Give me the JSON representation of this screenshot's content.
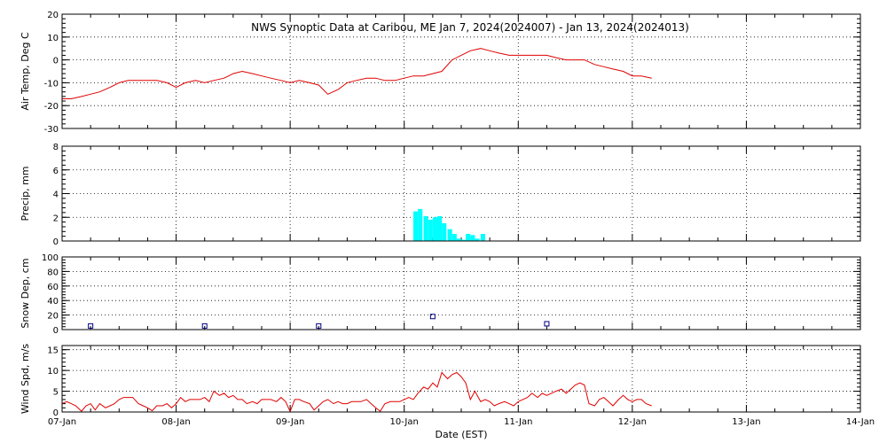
{
  "chart_data": {
    "type": "line",
    "title": "NWS Synoptic Data at Caribou, ME   Jan  7, 2024(2024007) - Jan 13, 2024(2024013)",
    "xlabel": "Date (EST)",
    "x_range": [
      "2024-01-07",
      "2024-01-14"
    ],
    "x_ticks": [
      "07-Jan",
      "08-Jan",
      "09-Jan",
      "10-Jan",
      "11-Jan",
      "12-Jan",
      "13-Jan",
      "14-Jan"
    ],
    "panels": [
      {
        "key": "temp",
        "type": "line",
        "ylabel": "Air Temp, Deg C",
        "ylim": [
          -30,
          20
        ],
        "y_ticks": [
          20,
          10,
          0,
          -10,
          -20,
          -30
        ],
        "color": "#e00000",
        "series": [
          {
            "days": [
              0,
              0.08,
              0.17,
              0.25,
              0.33,
              0.42,
              0.5,
              0.58,
              0.67,
              0.75,
              0.83,
              0.92,
              1.0,
              1.08,
              1.17,
              1.25,
              1.33,
              1.42,
              1.5,
              1.58,
              1.67,
              1.75,
              1.83,
              1.92,
              2.0,
              2.08,
              2.17,
              2.25,
              2.33,
              2.42,
              2.5,
              2.58,
              2.67,
              2.75,
              2.83,
              2.92,
              3.0,
              3.08,
              3.17,
              3.25,
              3.33,
              3.42,
              3.5,
              3.58,
              3.67,
              3.75,
              3.83,
              3.92,
              4.0,
              4.08,
              4.17,
              4.25,
              4.33,
              4.42,
              4.5,
              4.58,
              4.67,
              4.75,
              4.83,
              4.92,
              5.0,
              5.08,
              5.17
            ],
            "values": [
              -17,
              -17,
              -16,
              -15,
              -14,
              -12,
              -10,
              -9,
              -9,
              -9,
              -9,
              -10,
              -12,
              -10,
              -9,
              -10,
              -9,
              -8,
              -6,
              -5,
              -6,
              -7,
              -8,
              -9,
              -10,
              -9,
              -10,
              -11,
              -15,
              -13,
              -10,
              -9,
              -8,
              -8,
              -9,
              -9,
              -8,
              -7,
              -7,
              -6,
              -5,
              0,
              2,
              4,
              5,
              4,
              3,
              2,
              2,
              2,
              2,
              2,
              1,
              0,
              0,
              0,
              -2,
              -3,
              -4,
              -5,
              -7,
              -7,
              -8
            ]
          }
        ]
      },
      {
        "key": "precip",
        "type": "bar",
        "ylabel": "Precip, mm",
        "ylim": [
          0,
          8
        ],
        "y_ticks": [
          8,
          6,
          4,
          2,
          0
        ],
        "color": "#00ffff",
        "series": [
          {
            "days": [
              3.08,
              3.12,
              3.17,
              3.21,
              3.25,
              3.29,
              3.33,
              3.38,
              3.42,
              3.46,
              3.5,
              3.54,
              3.58,
              3.62,
              3.67,
              3.71
            ],
            "values": [
              2.5,
              2.7,
              2.1,
              1.8,
              2.0,
              2.1,
              1.5,
              1.0,
              0.6,
              0.2,
              0.1,
              0.6,
              0.5,
              0.2,
              0.6,
              0.0
            ]
          }
        ]
      },
      {
        "key": "snow",
        "type": "scatter",
        "ylabel": "Snow Dep, cm",
        "ylim": [
          0,
          100
        ],
        "y_ticks": [
          100,
          80,
          60,
          40,
          20,
          0
        ],
        "color": "#000080",
        "series": [
          {
            "days": [
              0.25,
              1.25,
              2.25,
              3.25,
              4.25
            ],
            "values": [
              5,
              5,
              5,
              18,
              8
            ]
          }
        ]
      },
      {
        "key": "wind",
        "type": "line",
        "ylabel": "Wind Spd, m/s",
        "ylim": [
          0,
          16
        ],
        "y_ticks": [
          15,
          10,
          5,
          0
        ],
        "color": "#e00000",
        "series": [
          {
            "days": [
              0,
              0.04,
              0.08,
              0.12,
              0.17,
              0.21,
              0.25,
              0.29,
              0.33,
              0.38,
              0.42,
              0.46,
              0.5,
              0.54,
              0.58,
              0.62,
              0.67,
              0.71,
              0.75,
              0.79,
              0.83,
              0.88,
              0.92,
              0.96,
              1.0,
              1.04,
              1.08,
              1.12,
              1.17,
              1.21,
              1.25,
              1.29,
              1.33,
              1.38,
              1.42,
              1.46,
              1.5,
              1.54,
              1.58,
              1.62,
              1.67,
              1.71,
              1.75,
              1.79,
              1.83,
              1.88,
              1.92,
              1.96,
              2.0,
              2.04,
              2.08,
              2.12,
              2.17,
              2.21,
              2.25,
              2.29,
              2.33,
              2.38,
              2.42,
              2.46,
              2.5,
              2.54,
              2.58,
              2.62,
              2.67,
              2.71,
              2.75,
              2.79,
              2.83,
              2.88,
              2.92,
              2.96,
              3.0,
              3.04,
              3.08,
              3.12,
              3.17,
              3.21,
              3.25,
              3.29,
              3.33,
              3.38,
              3.42,
              3.46,
              3.5,
              3.54,
              3.58,
              3.62,
              3.67,
              3.71,
              3.75,
              3.79,
              3.83,
              3.88,
              3.92,
              3.96,
              4.0,
              4.04,
              4.08,
              4.12,
              4.17,
              4.21,
              4.25,
              4.29,
              4.33,
              4.38,
              4.42,
              4.46,
              4.5,
              4.54,
              4.58,
              4.62,
              4.67,
              4.71,
              4.75,
              4.79,
              4.83,
              4.88,
              4.92,
              4.96,
              5.0,
              5.04,
              5.08,
              5.12,
              5.17
            ],
            "values": [
              2,
              2.5,
              2,
              1.5,
              0.2,
              1.5,
              2,
              0.5,
              2,
              1,
              1.5,
              2,
              3,
              3.5,
              3.5,
              3.5,
              2,
              1.5,
              1,
              0.3,
              1.5,
              1.5,
              2,
              1,
              2,
              3.5,
              2.5,
              3,
              3,
              3,
              3.5,
              2.5,
              5,
              4,
              4.5,
              3.5,
              4,
              3,
              3,
              2,
              2.5,
              2,
              3,
              3,
              3,
              2.5,
              3.5,
              2.5,
              0.1,
              3,
              3,
              2.5,
              2,
              0.5,
              1.5,
              2.5,
              3,
              2,
              2.5,
              2,
              2,
              2.5,
              2.5,
              2.5,
              3,
              2,
              1,
              0.2,
              2,
              2.5,
              2.5,
              2.5,
              3,
              3.5,
              3,
              4.5,
              6,
              5.5,
              7,
              6,
              9.5,
              8,
              9,
              9.5,
              8.5,
              7,
              3,
              5,
              2.5,
              3,
              2.5,
              1.5,
              2,
              2.5,
              2,
              1.5,
              2.5,
              3,
              3.5,
              4.5,
              3.5,
              4.5,
              4,
              4.5,
              5,
              5.5,
              4.5,
              5.5,
              6.5,
              7,
              6.5,
              2,
              1.5,
              3,
              3.5,
              2.5,
              1.5,
              3,
              4,
              3,
              2.5,
              3,
              3,
              2,
              1.5
            ]
          }
        ]
      }
    ]
  }
}
